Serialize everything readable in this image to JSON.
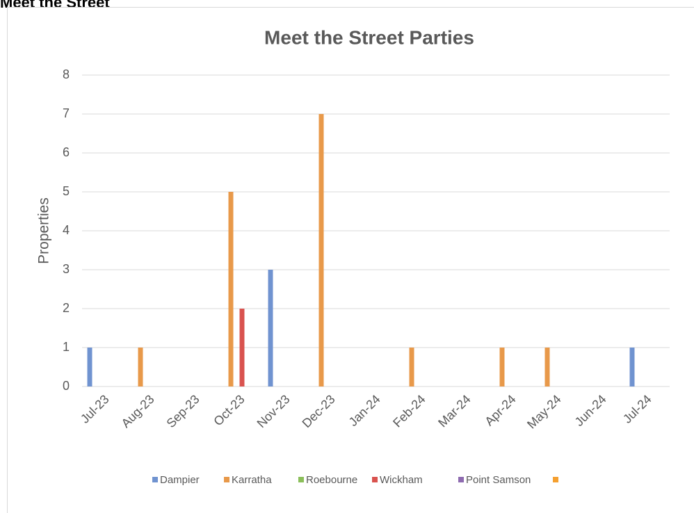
{
  "page_title": "Meet the Street",
  "chart_data": {
    "type": "bar",
    "title": "Meet the Street Parties",
    "y_label": "Properties",
    "categories": [
      "Jul-23",
      "Aug-23",
      "Sep-23",
      "Oct-23",
      "Nov-23",
      "Dec-23",
      "Jan-24",
      "Feb-24",
      "Mar-24",
      "Apr-24",
      "May-24",
      "Jun-24",
      "Jul-24"
    ],
    "series": [
      {
        "name": "Dampier",
        "color": "#7093d0",
        "values": [
          1,
          null,
          null,
          null,
          3,
          null,
          null,
          null,
          null,
          null,
          null,
          null,
          1
        ]
      },
      {
        "name": "Karratha",
        "color": "#e8994a",
        "values": [
          null,
          1,
          null,
          5,
          null,
          7,
          null,
          1,
          null,
          1,
          1,
          null,
          null
        ]
      },
      {
        "name": "Roebourne",
        "color": "#8bbf5a",
        "values": [
          null,
          null,
          null,
          null,
          null,
          null,
          null,
          null,
          null,
          null,
          null,
          null,
          null
        ]
      },
      {
        "name": "Wickham",
        "color": "#d9534f",
        "values": [
          null,
          null,
          null,
          2,
          null,
          null,
          null,
          null,
          null,
          null,
          null,
          null,
          null
        ]
      },
      {
        "name": "Point Samson",
        "color": "#8e6bb0",
        "values": [
          null,
          null,
          null,
          null,
          null,
          null,
          null,
          null,
          null,
          null,
          null,
          null,
          null
        ]
      },
      {
        "name": null,
        "color": "#f5a030",
        "values": [
          null,
          null,
          null,
          null,
          null,
          null,
          null,
          null,
          null,
          null,
          null,
          null,
          null
        ]
      }
    ],
    "ylim": [
      0,
      8
    ],
    "yticks": [
      0,
      1,
      2,
      3,
      4,
      5,
      6,
      7,
      8
    ],
    "grid": true,
    "legend": "bottom"
  }
}
